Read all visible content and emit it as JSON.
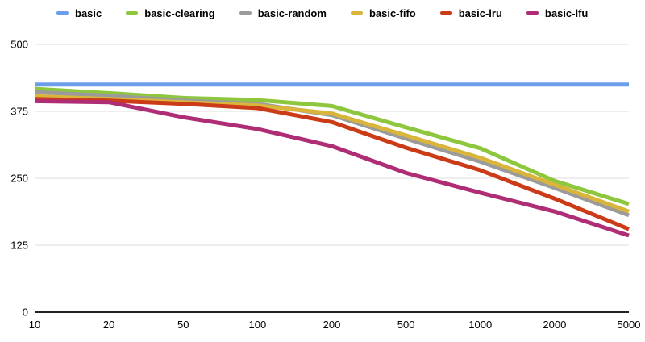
{
  "chart_data": {
    "type": "line",
    "title": "",
    "xlabel": "",
    "ylabel": "",
    "x_scale": "categorical",
    "categories": [
      "10",
      "20",
      "50",
      "100",
      "200",
      "500",
      "1000",
      "2000",
      "5000"
    ],
    "yticks": [
      0,
      125,
      250,
      375,
      500
    ],
    "ylim": [
      0,
      500
    ],
    "grid": "horizontal",
    "legend_position": "top",
    "series": [
      {
        "name": "basic",
        "color": "#6d9eeb",
        "values": [
          425,
          425,
          425,
          425,
          425,
          425,
          425,
          425,
          425
        ]
      },
      {
        "name": "basic-clearing",
        "color": "#8ec73e",
        "values": [
          417,
          409,
          400,
          396,
          385,
          345,
          306,
          245,
          202
        ]
      },
      {
        "name": "basic-random",
        "color": "#9b9b9b",
        "values": [
          411,
          404,
          395,
          389,
          368,
          324,
          281,
          232,
          181
        ]
      },
      {
        "name": "basic-fifo",
        "color": "#d9b53c",
        "values": [
          403,
          398,
          392,
          386,
          371,
          330,
          288,
          238,
          188
        ]
      },
      {
        "name": "basic-lru",
        "color": "#cc3b17",
        "values": [
          398,
          395,
          389,
          381,
          355,
          307,
          265,
          212,
          155
        ]
      },
      {
        "name": "basic-lfu",
        "color": "#ae2d74",
        "values": [
          394,
          392,
          364,
          342,
          310,
          260,
          223,
          188,
          143
        ]
      }
    ],
    "colors": {
      "gridline": "#dcdcdc",
      "axis_line": "#212121",
      "tick_text": "#000000",
      "background": "#ffffff"
    }
  }
}
